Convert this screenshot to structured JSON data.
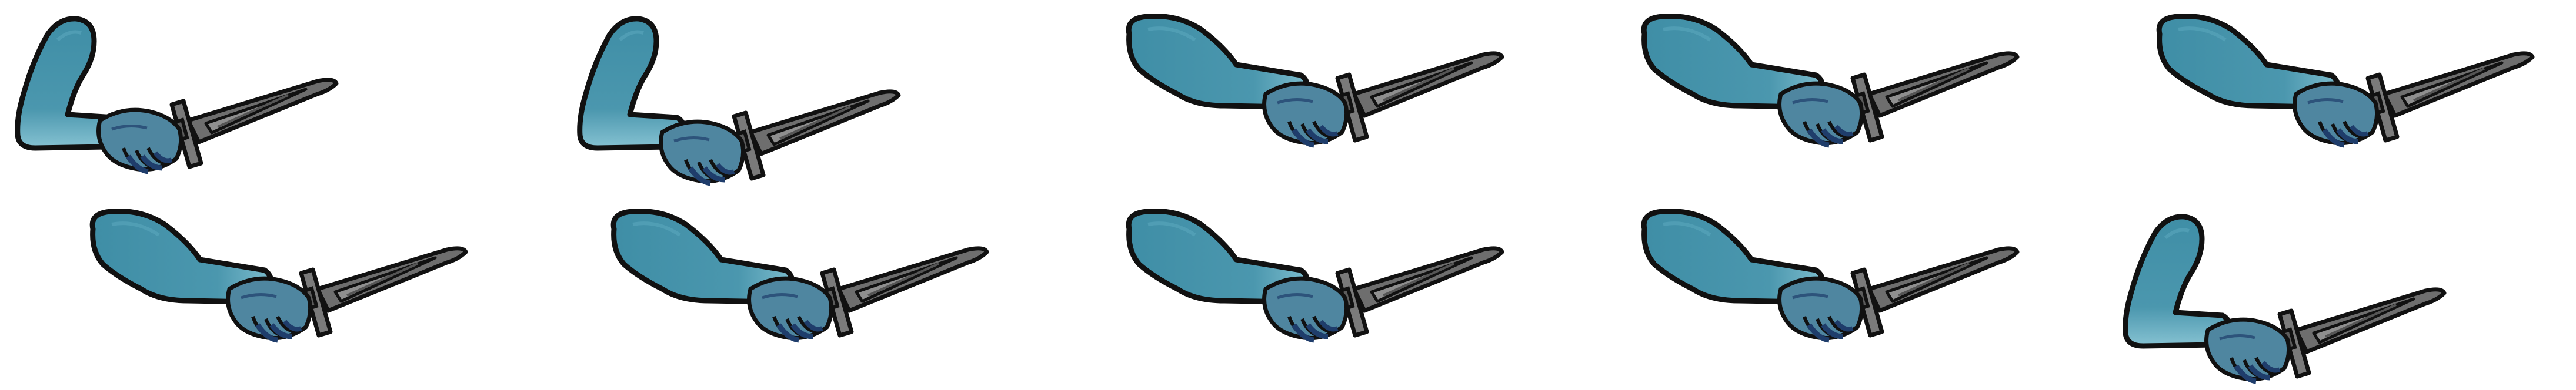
{
  "sprite_sheet": {
    "columns": 5,
    "rows": 2,
    "colors": {
      "background": "#ffffff",
      "outline": "#111111",
      "sleeve": "#3f8ea6",
      "sleeve_light": "#6fb3c6",
      "glove": "#4a7f9a",
      "glove_dark": "#1f3d6b",
      "blade": "#6e6e6e",
      "blade_light": "#8a8a8a",
      "hilt": "#7a7a7a"
    },
    "frames": [
      {
        "pose": "raised"
      },
      {
        "pose": "raised"
      },
      {
        "pose": "extended"
      },
      {
        "pose": "extended"
      },
      {
        "pose": "extended"
      },
      {
        "pose": "extended"
      },
      {
        "pose": "extended"
      },
      {
        "pose": "extended"
      },
      {
        "pose": "extended"
      },
      {
        "pose": "raised"
      }
    ]
  }
}
